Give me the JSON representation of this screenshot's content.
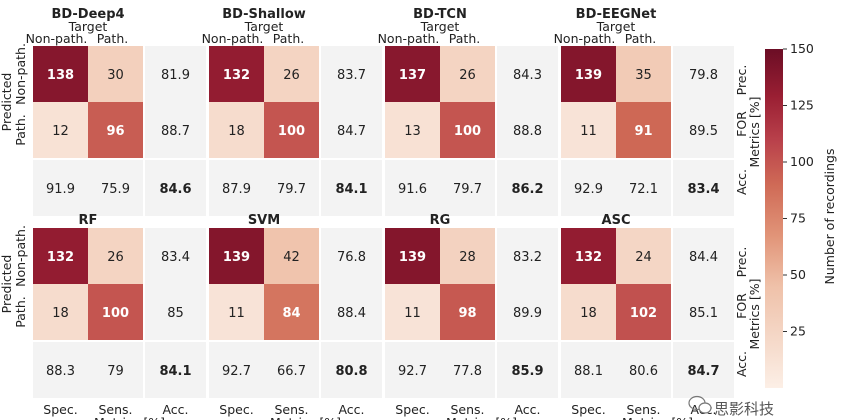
{
  "chart_data": {
    "type": "heatmap",
    "colorbar": {
      "label": "Number of recordings",
      "min": 0,
      "max": 150,
      "ticks": [
        25,
        50,
        75,
        100,
        125,
        150
      ]
    },
    "row_axis": {
      "title": "Predicted",
      "labels": [
        "Non-path.",
        "Path."
      ]
    },
    "col_axis": {
      "title": "Target",
      "labels": [
        "Non-path.",
        "Path."
      ]
    },
    "metric_row_labels": [
      "Prec.",
      "FOR",
      "Acc."
    ],
    "metric_row_title": "Metrics [%]",
    "metric_col_labels": [
      "Spec.",
      "Sens.",
      "Acc."
    ],
    "metric_col_title": "Metrics [%]",
    "panels": [
      {
        "title": "BD-Deep4",
        "matrix": [
          [
            138,
            30
          ],
          [
            12,
            96
          ]
        ],
        "row_metrics": [
          "81.9",
          "88.7"
        ],
        "col_metrics": [
          "91.9",
          "75.9"
        ],
        "accuracy": "84.6"
      },
      {
        "title": "BD-Shallow",
        "matrix": [
          [
            132,
            26
          ],
          [
            18,
            100
          ]
        ],
        "row_metrics": [
          "83.7",
          "84.7"
        ],
        "col_metrics": [
          "87.9",
          "79.7"
        ],
        "accuracy": "84.1"
      },
      {
        "title": "BD-TCN",
        "matrix": [
          [
            137,
            26
          ],
          [
            13,
            100
          ]
        ],
        "row_metrics": [
          "84.3",
          "88.8"
        ],
        "col_metrics": [
          "91.6",
          "79.7"
        ],
        "accuracy": "86.2"
      },
      {
        "title": "BD-EEGNet",
        "matrix": [
          [
            139,
            35
          ],
          [
            11,
            91
          ]
        ],
        "row_metrics": [
          "79.8",
          "89.5"
        ],
        "col_metrics": [
          "92.9",
          "72.1"
        ],
        "accuracy": "83.4"
      },
      {
        "title": "RF",
        "matrix": [
          [
            132,
            26
          ],
          [
            18,
            100
          ]
        ],
        "row_metrics": [
          "83.4",
          "85"
        ],
        "col_metrics": [
          "88.3",
          "79"
        ],
        "accuracy": "84.1"
      },
      {
        "title": "SVM",
        "matrix": [
          [
            139,
            42
          ],
          [
            11,
            84
          ]
        ],
        "row_metrics": [
          "76.8",
          "88.4"
        ],
        "col_metrics": [
          "92.7",
          "66.7"
        ],
        "accuracy": "80.8"
      },
      {
        "title": "RG",
        "matrix": [
          [
            139,
            28
          ],
          [
            11,
            98
          ]
        ],
        "row_metrics": [
          "83.2",
          "89.9"
        ],
        "col_metrics": [
          "92.7",
          "77.8"
        ],
        "accuracy": "85.9"
      },
      {
        "title": "ASC",
        "matrix": [
          [
            132,
            24
          ],
          [
            18,
            102
          ]
        ],
        "row_metrics": [
          "84.4",
          "85.1"
        ],
        "col_metrics": [
          "88.1",
          "80.6"
        ],
        "accuracy": "84.7"
      }
    ]
  },
  "watermark": {
    "text": "思影科技",
    "icon": "wechat-icon"
  }
}
